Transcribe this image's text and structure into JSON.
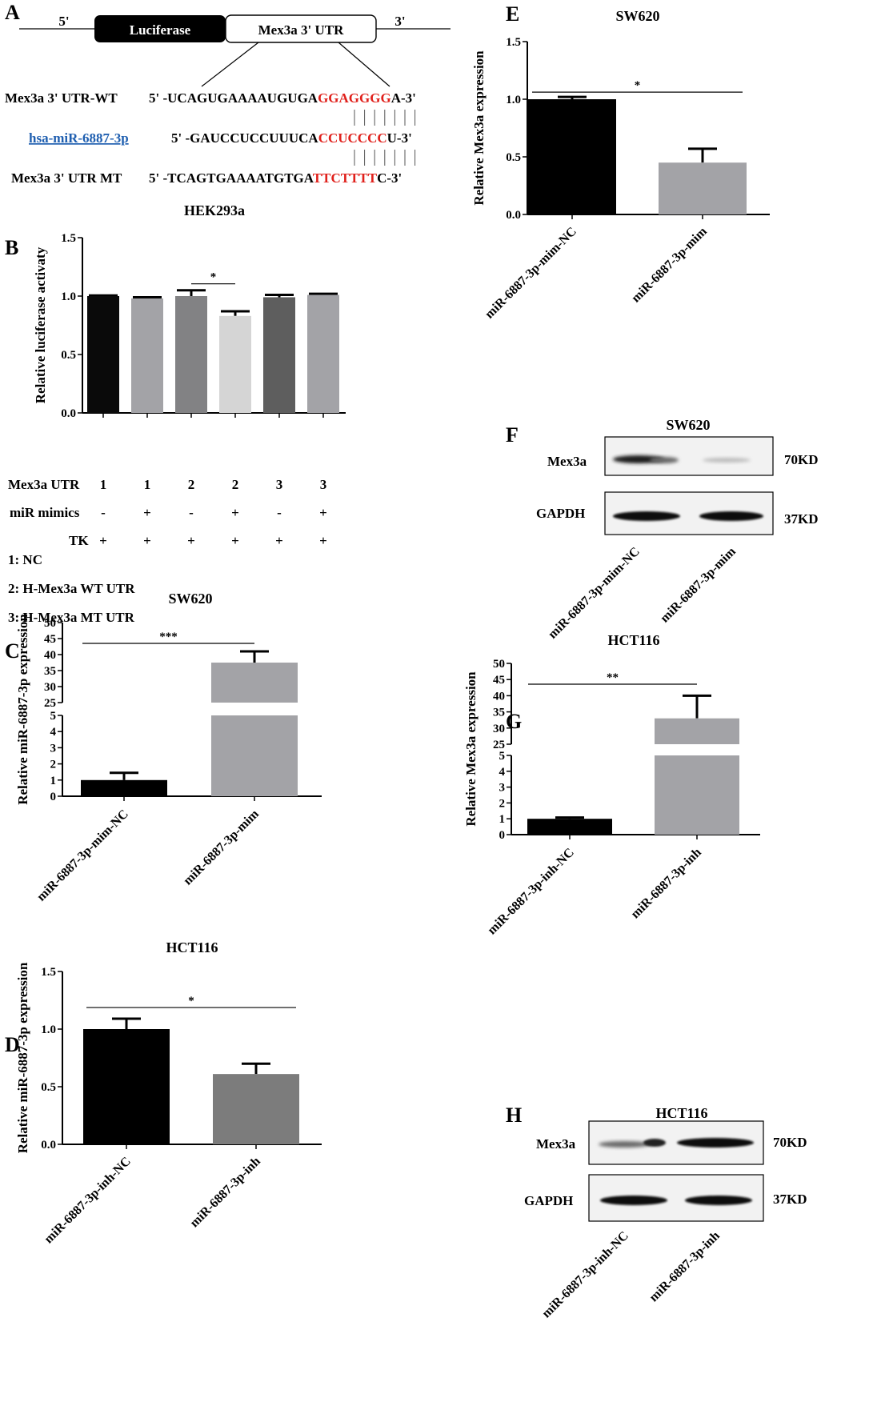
{
  "panel_labels": {
    "A": "A",
    "B": "B",
    "C": "C",
    "D": "D",
    "E": "E",
    "F": "F",
    "G": "G",
    "H": "H"
  },
  "panelA": {
    "five_prime": "5'",
    "three_prime": "3'",
    "box_luciferase": "Luciferase",
    "box_utr": "Mex3a 3' UTR",
    "rows": [
      {
        "label": "Mex3a 3' UTR-WT",
        "pre": "5' -UCAGUGAAAAUGUGA",
        "site": "GGAGGGG",
        "post": "A-3'"
      },
      {
        "label": "hsa-miR-6887-3p",
        "pre": "5' -GAUCCUCCUUUCA",
        "site": "CCUCCCC",
        "post": "U-3'"
      },
      {
        "label": "Mex3a 3' UTR MT",
        "pre": "5' -TCAGTGAAAATGTGA",
        "site": "TTCTTTT",
        "post": "C-3'"
      }
    ]
  },
  "panelB": {
    "table": {
      "row_labels": [
        "Mex3a UTR",
        "miR mimics",
        "TK"
      ],
      "rows": [
        [
          "1",
          "1",
          "2",
          "2",
          "3",
          "3"
        ],
        [
          "-",
          "+",
          "-",
          "+",
          "-",
          "+"
        ],
        [
          "+",
          "+",
          "+",
          "+",
          "+",
          "+"
        ]
      ]
    },
    "legend": [
      "1: NC",
      "2: H-Mex3a WT UTR",
      "3: H-Mex3a MT UTR"
    ]
  },
  "panelF": {
    "title": "SW620",
    "bands": [
      "Mex3a",
      "GAPDH"
    ],
    "sizes": [
      "70KD",
      "37KD"
    ],
    "lanes": [
      "miR-6887-3p-mim-NC",
      "miR-6887-3p-mim"
    ]
  },
  "panelH": {
    "title": "HCT116",
    "bands": [
      "Mex3a",
      "GAPDH"
    ],
    "sizes": [
      "70KD",
      "37KD"
    ],
    "lanes": [
      "miR-6887-3p-inh-NC",
      "miR-6887-3p-inh"
    ]
  },
  "chart_data": [
    {
      "panel": "B",
      "type": "bar",
      "title": "HEK293a",
      "xlabel": "",
      "ylabel": "Relative luciferase activaty",
      "ylim": [
        0,
        1.5
      ],
      "yticks": [
        0.0,
        0.5,
        1.0,
        1.5
      ],
      "values": [
        1.0,
        0.98,
        1.0,
        0.83,
        0.99,
        1.01
      ],
      "errors": [
        0.005,
        0.01,
        0.05,
        0.04,
        0.02,
        0.01
      ],
      "colors": [
        "#0a0a0a",
        "#a3a3a7",
        "#828284",
        "#d5d5d5",
        "#5e5e5e",
        "#a3a3a7"
      ],
      "significance": [
        {
          "from": 2,
          "to": 3,
          "label": "*"
        }
      ]
    },
    {
      "panel": "C",
      "type": "bar",
      "title": "SW620",
      "ylabel": "Relative miR-6887-3p expression",
      "categories": [
        "miR-6887-3p-mim-NC",
        "miR-6887-3p-mim"
      ],
      "values": [
        1.0,
        37.5
      ],
      "errors": [
        0.45,
        3.5
      ],
      "colors": [
        "#000000",
        "#a3a3a7"
      ],
      "axis_break": {
        "lower": [
          0,
          5
        ],
        "upper": [
          25,
          50
        ]
      },
      "yticks_lower": [
        0,
        1,
        2,
        3,
        4,
        5
      ],
      "yticks_upper": [
        25,
        30,
        35,
        40,
        45,
        50
      ],
      "significance": [
        {
          "from": 0,
          "to": 1,
          "label": "***"
        }
      ]
    },
    {
      "panel": "D",
      "type": "bar",
      "title": "HCT116",
      "ylabel": "Relative miR-6887-3p expression",
      "categories": [
        "miR-6887-3p-inh-NC",
        "miR-6887-3p-inh"
      ],
      "values": [
        1.0,
        0.61
      ],
      "errors": [
        0.09,
        0.09
      ],
      "colors": [
        "#000000",
        "#7c7c7c"
      ],
      "ylim": [
        0,
        1.5
      ],
      "yticks": [
        0.0,
        0.5,
        1.0,
        1.5
      ],
      "significance": [
        {
          "from": 0,
          "to": 1,
          "label": "*"
        }
      ]
    },
    {
      "panel": "E",
      "type": "bar",
      "title": "SW620",
      "ylabel": "Relative Mex3a expression",
      "categories": [
        "miR-6887-3p-mim-NC",
        "miR-6887-3p-mim"
      ],
      "values": [
        1.0,
        0.45
      ],
      "errors": [
        0.02,
        0.12
      ],
      "colors": [
        "#000000",
        "#a3a3a7"
      ],
      "ylim": [
        0,
        1.5
      ],
      "yticks": [
        0.0,
        0.5,
        1.0,
        1.5
      ],
      "significance": [
        {
          "from": 0,
          "to": 1,
          "label": "*"
        }
      ]
    },
    {
      "panel": "G",
      "type": "bar",
      "title": "HCT116",
      "ylabel": "Relative Mex3a expression",
      "categories": [
        "miR-6887-3p-inh-NC",
        "miR-6887-3p-inh"
      ],
      "values": [
        1.0,
        33.0
      ],
      "errors": [
        0.08,
        7.0
      ],
      "colors": [
        "#000000",
        "#a3a3a7"
      ],
      "axis_break": {
        "lower": [
          0,
          5
        ],
        "upper": [
          25,
          50
        ]
      },
      "yticks_lower": [
        0,
        1,
        2,
        3,
        4,
        5
      ],
      "yticks_upper": [
        25,
        30,
        35,
        40,
        45,
        50
      ],
      "significance": [
        {
          "from": 0,
          "to": 1,
          "label": "**"
        }
      ]
    }
  ]
}
